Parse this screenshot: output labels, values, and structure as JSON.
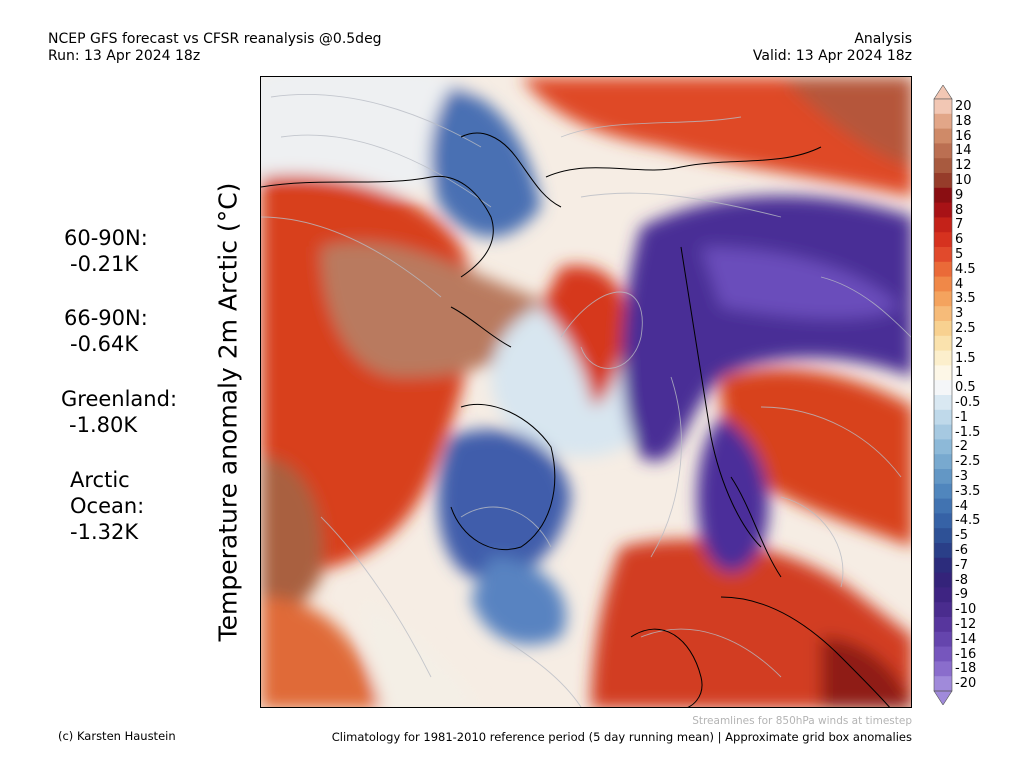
{
  "header": {
    "title": "NCEP GFS forecast vs CFSR reanalysis @0.5deg",
    "run": "Run: 13 Apr 2024 18z",
    "mode": "Analysis",
    "valid": "Valid: 13 Apr 2024 18z"
  },
  "variable_label": "Temperature anomaly 2m Arctic (°C)",
  "stats": [
    {
      "label": "60-90N:",
      "value": "-0.21K"
    },
    {
      "label": "66-90N:",
      "value": "-0.64K"
    },
    {
      "label": "Greenland:",
      "value": "-1.80K"
    },
    {
      "label_lines": [
        "Arctic",
        "Ocean:"
      ],
      "value": "-1.32K"
    }
  ],
  "colorbar": {
    "labels": [
      "20",
      "18",
      "16",
      "14",
      "12",
      "10",
      "9",
      "8",
      "7",
      "6",
      "5",
      "4.5",
      "4",
      "3.5",
      "3",
      "2.5",
      "2",
      "1.5",
      "1",
      "0.5",
      "-0.5",
      "-1",
      "-1.5",
      "-2",
      "-2.5",
      "-3",
      "-3.5",
      "-4",
      "-4.5",
      "-5",
      "-6",
      "-7",
      "-8",
      "-9",
      "-10",
      "-12",
      "-14",
      "-16",
      "-18",
      "-20"
    ],
    "colors": [
      "#f2c7b4",
      "#e2a688",
      "#cf8a68",
      "#bb6f52",
      "#a85a3f",
      "#963c2a",
      "#8a0e12",
      "#a81216",
      "#c42219",
      "#d6321f",
      "#e14a2c",
      "#ea6a38",
      "#f08848",
      "#f4a35e",
      "#f6bb79",
      "#f8d190",
      "#fae2ad",
      "#fcefcc",
      "#fdf7e7",
      "#f4f6f8",
      "#d9e8f2",
      "#bfd9ea",
      "#a6c9e1",
      "#8db9d8",
      "#78a9cf",
      "#6397c5",
      "#5086bd",
      "#4173b1",
      "#3662a6",
      "#2e5196",
      "#2a3f88",
      "#2c2c7c",
      "#34237a",
      "#3e2482",
      "#4a2c8e",
      "#57369d",
      "#6545ad",
      "#7656bd",
      "#8a6dcc",
      "#a08ada"
    ]
  },
  "footer": {
    "credit": "(c) Karsten Haustein",
    "streamlines_note": "Streamlines for 850hPa winds at timestep",
    "climatology_note": "Climatology for 1981-2010 reference period (5 day running mean) | Approximate grid box anomalies"
  }
}
